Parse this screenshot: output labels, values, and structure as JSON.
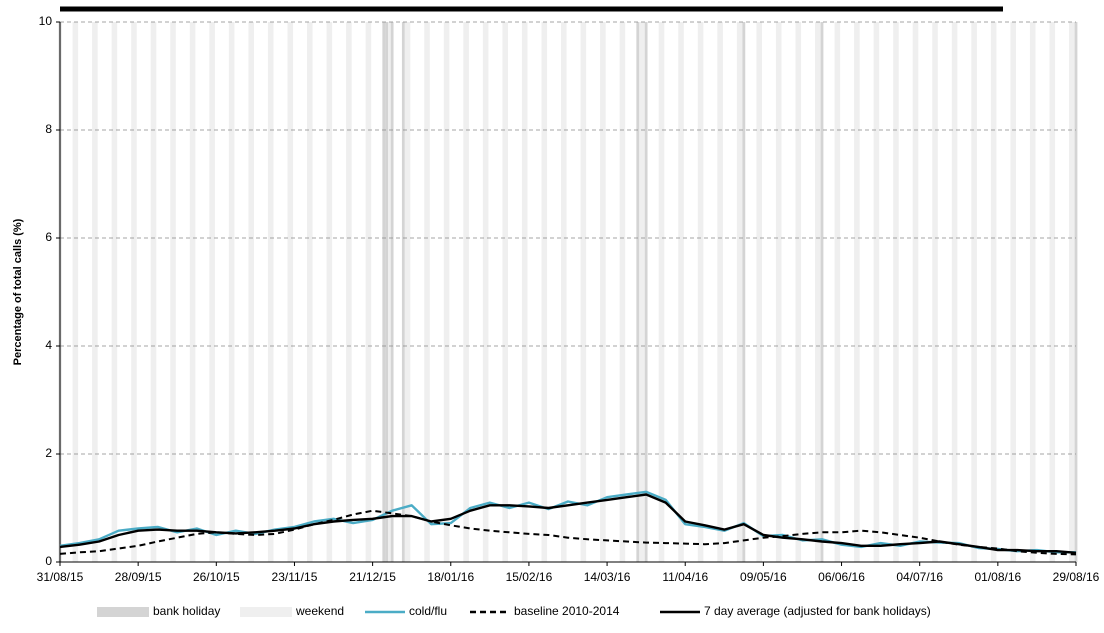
{
  "chart_data": {
    "type": "line",
    "y_label": "Percentage of total calls (%)",
    "categories": [
      "31/08/15",
      null,
      null,
      null,
      "28/09/15",
      null,
      null,
      null,
      "26/10/15",
      null,
      null,
      null,
      "23/11/15",
      null,
      null,
      null,
      "21/12/15",
      null,
      null,
      null,
      "18/01/16",
      null,
      null,
      null,
      "15/02/16",
      null,
      null,
      null,
      "14/03/16",
      null,
      null,
      null,
      "11/04/16",
      null,
      null,
      null,
      "09/05/16",
      null,
      null,
      null,
      "06/06/16",
      null,
      null,
      null,
      "04/07/16",
      null,
      null,
      null,
      "01/08/16",
      null,
      null,
      null,
      "29/08/16"
    ],
    "bands": [
      {
        "name": "bank holiday",
        "color": "#d4d4d4"
      },
      {
        "name": "weekend",
        "color": "#efefef"
      }
    ],
    "series": [
      {
        "name": "cold/flu",
        "color": "#4bacc6",
        "style": "solid",
        "values": [
          0.3,
          0.35,
          0.42,
          0.58,
          0.62,
          0.65,
          0.55,
          0.62,
          0.5,
          0.58,
          0.52,
          0.6,
          0.65,
          0.75,
          0.8,
          0.72,
          0.78,
          0.95,
          1.05,
          0.7,
          0.72,
          1.0,
          1.1,
          1.0,
          1.1,
          0.98,
          1.12,
          1.05,
          1.2,
          1.25,
          1.3,
          1.15,
          0.7,
          0.65,
          0.58,
          0.72,
          0.48,
          0.5,
          0.4,
          0.42,
          0.32,
          0.28,
          0.35,
          0.3,
          0.38,
          0.36,
          0.35,
          0.26,
          0.24,
          0.2,
          0.22,
          0.18,
          0.18
        ]
      },
      {
        "name": "baseline 2010-2014",
        "color": "#000000",
        "style": "dashed",
        "values": [
          0.15,
          0.18,
          0.2,
          0.25,
          0.3,
          0.38,
          0.45,
          0.52,
          0.55,
          0.52,
          0.5,
          0.52,
          0.6,
          0.7,
          0.78,
          0.88,
          0.95,
          0.9,
          0.85,
          0.75,
          0.68,
          0.62,
          0.58,
          0.55,
          0.52,
          0.5,
          0.45,
          0.42,
          0.4,
          0.38,
          0.36,
          0.35,
          0.34,
          0.33,
          0.35,
          0.4,
          0.45,
          0.48,
          0.52,
          0.55,
          0.55,
          0.58,
          0.55,
          0.5,
          0.45,
          0.38,
          0.32,
          0.28,
          0.25,
          0.2,
          0.17,
          0.15,
          0.14
        ]
      },
      {
        "name": "7 day average (adjusted for bank holidays)",
        "color": "#000000",
        "style": "solid",
        "values": [
          0.28,
          0.32,
          0.38,
          0.5,
          0.58,
          0.6,
          0.58,
          0.58,
          0.55,
          0.53,
          0.55,
          0.58,
          0.62,
          0.7,
          0.75,
          0.78,
          0.8,
          0.85,
          0.85,
          0.75,
          0.8,
          0.95,
          1.05,
          1.05,
          1.03,
          1.0,
          1.05,
          1.1,
          1.15,
          1.2,
          1.25,
          1.1,
          0.75,
          0.68,
          0.6,
          0.7,
          0.5,
          0.45,
          0.42,
          0.38,
          0.35,
          0.3,
          0.3,
          0.33,
          0.35,
          0.38,
          0.33,
          0.28,
          0.22,
          0.22,
          0.2,
          0.2,
          0.17
        ]
      }
    ],
    "ylim": [
      0,
      10
    ],
    "yticks": [
      0,
      2,
      4,
      6,
      8,
      10
    ],
    "grid": true
  }
}
